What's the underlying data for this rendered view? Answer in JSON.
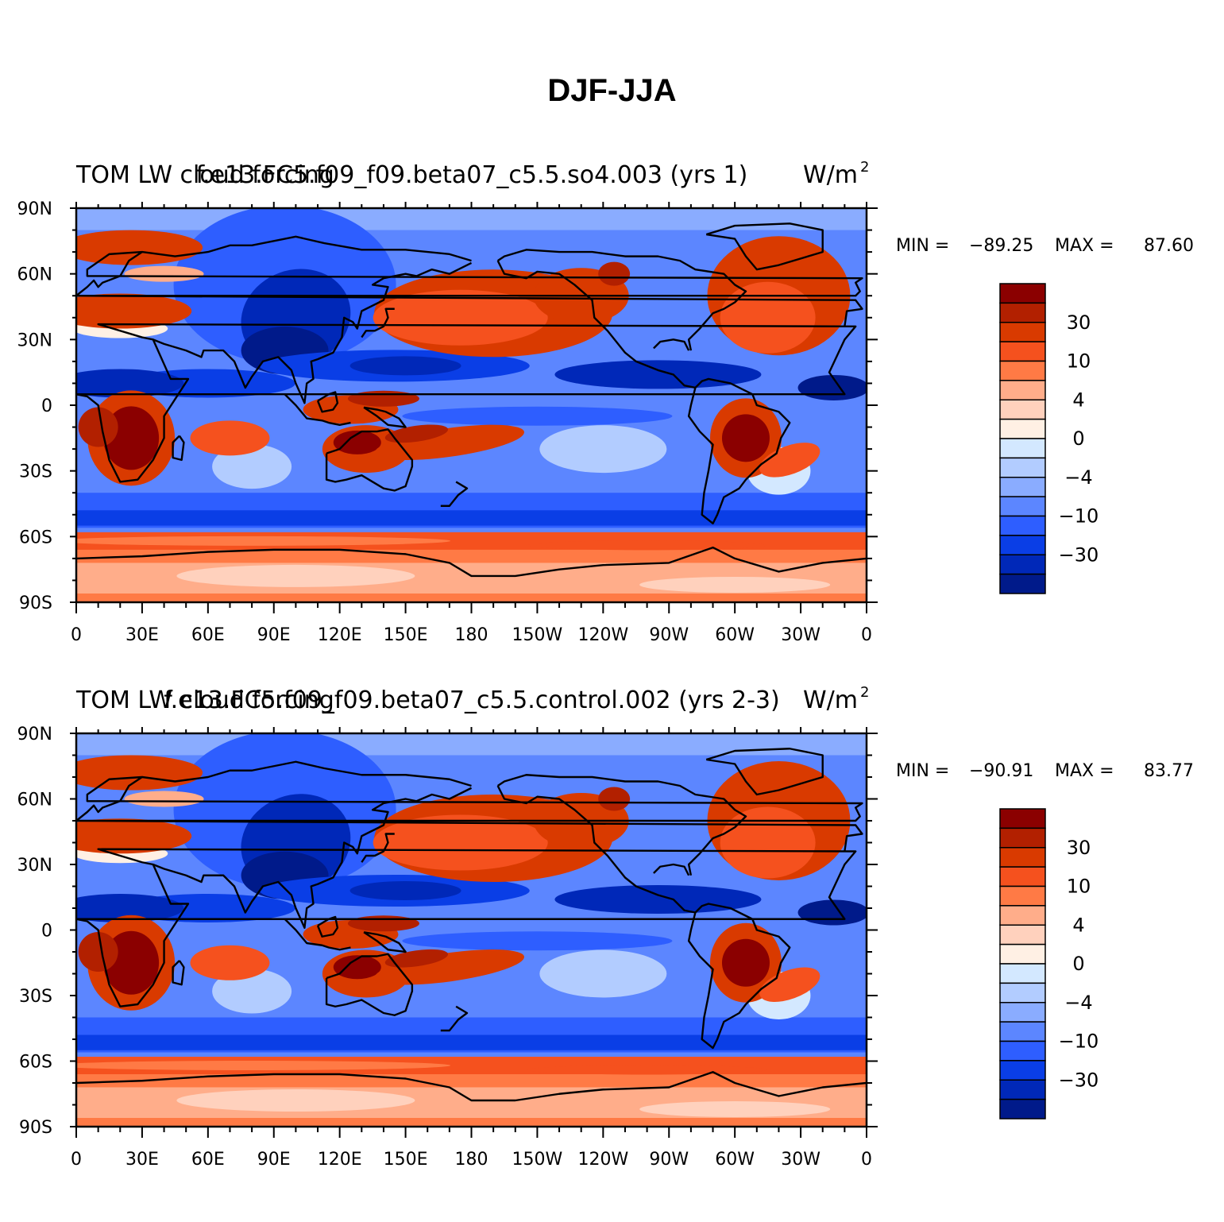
{
  "figure": {
    "title": "DJF-JJA"
  },
  "panels": [
    {
      "left_string": "TOM LW cloud forcing",
      "center_string": "f.e13.FC5.f09_f09.beta07_c5.5.so4.003 (yrs 1)",
      "units": "W/m",
      "units_superscript": "2",
      "min_label": "MIN =",
      "min_value": "-89.25",
      "max_label": "MAX =",
      "max_value": "87.60"
    },
    {
      "left_string": "TOM LW cloud forcing",
      "center_string": "f.e13.FC5.f09_f09.beta07_c5.5.control.002 (yrs 2-3)",
      "units": "W/m",
      "units_superscript": "2",
      "min_label": "MIN =",
      "min_value": "-90.91",
      "max_label": "MAX =",
      "max_value": "83.77"
    }
  ],
  "axes": {
    "lat_ticks": [
      "90N",
      "60N",
      "30N",
      "0",
      "30S",
      "60S",
      "90S"
    ],
    "lon_ticks": [
      "0",
      "30E",
      "60E",
      "90E",
      "120E",
      "150E",
      "180",
      "150W",
      "120W",
      "90W",
      "60W",
      "30W",
      "0"
    ]
  },
  "colorbar": {
    "labels": [
      "30",
      "10",
      "4",
      "0",
      "-4",
      "-10",
      "-30"
    ],
    "colors_top_to_bottom": [
      "#8b0000",
      "#b22000",
      "#d93a00",
      "#f5511e",
      "#ff7a45",
      "#ffad8a",
      "#ffd1bd",
      "#fff0e4",
      "#d3e8ff",
      "#b2ccff",
      "#8aacff",
      "#5c86ff",
      "#2e5eff",
      "#0a3ee6",
      "#0028b8",
      "#001a8a"
    ]
  }
}
